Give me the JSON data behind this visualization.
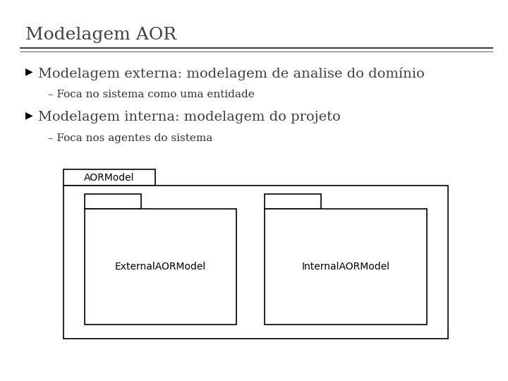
{
  "title": "Modelagem AOR",
  "title_fontsize": 18,
  "title_color": "#404040",
  "bg_color": "#ffffff",
  "bullet1": "Modelagem externa: modelagem de analise do domínio",
  "sub1": "– Foca no sistema como uma entidade",
  "bullet2": "Modelagem interna: modelagem do projeto",
  "sub2": "– Foca nos agentes do sistema",
  "bullet_symbol": "▶",
  "bullet_color": "#000000",
  "bullet_fontsize": 10,
  "text_fontsize": 14,
  "sub_fontsize": 11,
  "sub_color": "#303030",
  "diagram": {
    "outer_label": "AORModel",
    "left_label": "ExternalAORModel",
    "right_label": "InternalAORModel",
    "line_color": "#000000",
    "label_fontsize": 10
  }
}
